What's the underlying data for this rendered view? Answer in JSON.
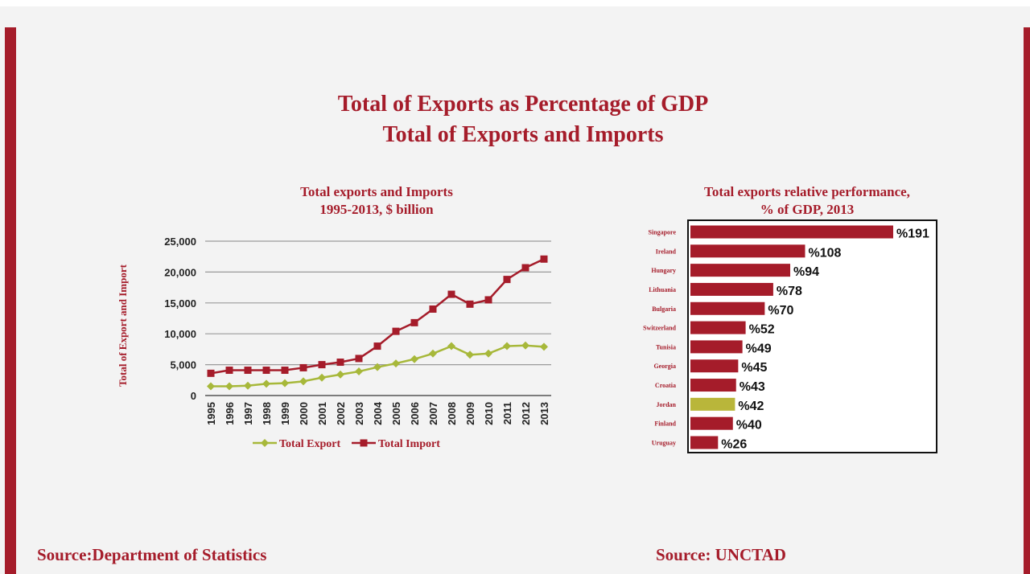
{
  "page": {
    "title_line1": "Total of Exports as Percentage of GDP",
    "title_line2": "Total of Exports and Imports",
    "source_left": "Source:Department of Statistics",
    "source_right": "Source: UNCTAD"
  },
  "colors": {
    "accent": "#a51c2a",
    "export": "#a7b83a",
    "import": "#a51c2a",
    "jordan_highlight": "#b9b63a"
  },
  "chart_data": [
    {
      "type": "line",
      "title": "Total exports and Imports",
      "subtitle": "1995-2013, $ billion",
      "xlabel": "",
      "ylabel": "Total of Export and Import",
      "ylim": [
        0,
        25000
      ],
      "yticks": [
        0,
        5000,
        10000,
        15000,
        20000,
        25000
      ],
      "ytick_labels": [
        "0",
        "5,000",
        "10,000",
        "15,000",
        "20,000",
        "25,000"
      ],
      "grid": true,
      "legend_position": "bottom",
      "x": [
        "1995",
        "1996",
        "1997",
        "1998",
        "1999",
        "2000",
        "2001",
        "2002",
        "2003",
        "2004",
        "2005",
        "2006",
        "2007",
        "2008",
        "2009",
        "2010",
        "2011",
        "2012",
        "2013"
      ],
      "series": [
        {
          "name": "Total Export",
          "marker": "diamond",
          "values": [
            1500,
            1500,
            1600,
            1900,
            2000,
            2300,
            2900,
            3400,
            3900,
            4600,
            5200,
            5900,
            6800,
            8000,
            6600,
            6800,
            8000,
            8100,
            7900
          ]
        },
        {
          "name": "Total Import",
          "marker": "square",
          "values": [
            3600,
            4100,
            4100,
            4100,
            4100,
            4500,
            5000,
            5400,
            6000,
            8000,
            10400,
            11800,
            14000,
            16400,
            14800,
            15500,
            18800,
            20700,
            22100
          ]
        }
      ]
    },
    {
      "type": "bar",
      "orientation": "horizontal",
      "title": "Total exports relative performance,",
      "subtitle": "% of GDP,  2013",
      "categories": [
        "Singapore",
        "Ireland",
        "Hungary",
        "Lithuania",
        "Bulgaria",
        "Switzerland",
        "Tunisia",
        "Georgia",
        "Croatia",
        "Jordan",
        "Finland",
        "Uruguay"
      ],
      "values": [
        191,
        108,
        94,
        78,
        70,
        52,
        49,
        45,
        43,
        42,
        40,
        26
      ],
      "value_labels": [
        "%191",
        "%108",
        "%94",
        "%78",
        "%70",
        "%52",
        "%49",
        "%45",
        "%43",
        "%42",
        "%40",
        "%26"
      ],
      "highlight": "Jordan",
      "xlim": [
        0,
        230
      ]
    }
  ]
}
